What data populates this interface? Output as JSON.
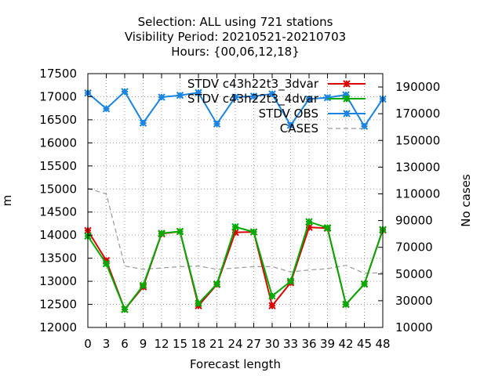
{
  "chart_data": {
    "type": "line",
    "title_lines": [
      "Selection: ALL using   721 stations",
      "Visibility   Period: 20210521-20210703",
      "Hours: {00,06,12,18}"
    ],
    "xlabel": "Forecast length",
    "ylabel": "m",
    "y2label": "No cases",
    "x": [
      0,
      3,
      6,
      9,
      12,
      15,
      18,
      21,
      24,
      27,
      30,
      33,
      36,
      39,
      42,
      45,
      48
    ],
    "xlim": [
      0,
      48
    ],
    "ylim": [
      12000,
      17500
    ],
    "y2lim": [
      10000,
      200000
    ],
    "yticks": [
      12000,
      12500,
      13000,
      13500,
      14000,
      14500,
      15000,
      15500,
      16000,
      16500,
      17000,
      17500
    ],
    "y2ticks": [
      10000,
      30000,
      50000,
      70000,
      90000,
      110000,
      130000,
      150000,
      170000,
      190000
    ],
    "grid": true,
    "legend_position": "top-right",
    "series": [
      {
        "name": "STDV c43h22t3_3dvar",
        "color": "#dd0000",
        "axis": "y1",
        "marker": "x",
        "values": [
          14100,
          13450,
          12390,
          12880,
          14030,
          14080,
          12470,
          12930,
          14060,
          14070,
          12470,
          12970,
          14170,
          14150,
          12500,
          12940,
          14110
        ]
      },
      {
        "name": "STDV c43h22t3_4dvar",
        "color": "#00aa00",
        "axis": "y1",
        "marker": "x",
        "values": [
          13980,
          13380,
          12390,
          12910,
          14040,
          14080,
          12520,
          12940,
          14180,
          14070,
          12680,
          13000,
          14290,
          14160,
          12500,
          12940,
          14120
        ]
      },
      {
        "name": "STDV OBS",
        "color": "#1a84e0",
        "axis": "y1",
        "marker": "x",
        "values": [
          17080,
          16740,
          17110,
          16430,
          16990,
          17030,
          17090,
          16410,
          16990,
          17010,
          17060,
          16380,
          16950,
          16980,
          17040,
          16360,
          16950
        ]
      },
      {
        "name": "CASES",
        "color": "#999999",
        "axis": "y2",
        "line_style": "dashed",
        "values": [
          114000,
          110000,
          56000,
          53500,
          54500,
          55500,
          56000,
          53500,
          54500,
          55500,
          55500,
          51500,
          53000,
          54000,
          56500,
          50500,
          51000
        ]
      }
    ]
  }
}
